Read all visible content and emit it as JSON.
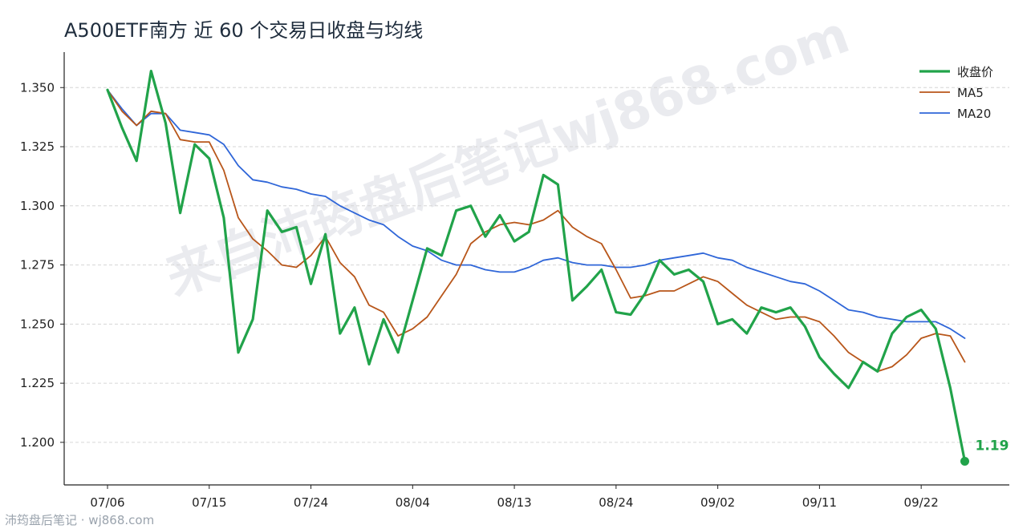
{
  "title": "A500ETF南方 近 60 个交易日收盘与均线",
  "watermark": "来自沛筠盘后笔记wj868.com",
  "footer": "沛筠盘后笔记 · wj868.com",
  "colors": {
    "close": "#21a34a",
    "ma5": "#b8561a",
    "ma20": "#2f66d8",
    "axis": "#222222",
    "grid": "#d6d6d6"
  },
  "chart_data": {
    "type": "line",
    "title": "A500ETF南方 近 60 个交易日收盘与均线",
    "ylim": [
      1.182,
      1.365
    ],
    "yticks": [
      1.2,
      1.225,
      1.25,
      1.275,
      1.3,
      1.325,
      1.35
    ],
    "ytick_labels": [
      "1.200",
      "1.225",
      "1.250",
      "1.275",
      "1.300",
      "1.325",
      "1.350"
    ],
    "xtick_labels": [
      {
        "index": 0,
        "label": "07/06"
      },
      {
        "index": 7,
        "label": "07/15"
      },
      {
        "index": 14,
        "label": "07/24"
      },
      {
        "index": 21,
        "label": "08/04"
      },
      {
        "index": 28,
        "label": "08/13"
      },
      {
        "index": 35,
        "label": "08/24"
      },
      {
        "index": 42,
        "label": "09/02"
      },
      {
        "index": 49,
        "label": "09/11"
      },
      {
        "index": 56,
        "label": "09/22"
      }
    ],
    "grid": "horizontal",
    "legend_position": "top-right",
    "series": [
      {
        "name": "收盘价",
        "values": [
          1.349,
          1.333,
          1.319,
          1.357,
          1.335,
          1.297,
          1.326,
          1.32,
          1.295,
          1.238,
          1.252,
          1.298,
          1.289,
          1.291,
          1.267,
          1.288,
          1.246,
          1.257,
          1.233,
          1.252,
          1.238,
          1.26,
          1.282,
          1.279,
          1.298,
          1.3,
          1.287,
          1.296,
          1.285,
          1.289,
          1.313,
          1.309,
          1.26,
          1.266,
          1.273,
          1.255,
          1.254,
          1.263,
          1.277,
          1.271,
          1.273,
          1.268,
          1.25,
          1.252,
          1.246,
          1.257,
          1.255,
          1.257,
          1.249,
          1.236,
          1.229,
          1.223,
          1.234,
          1.23,
          1.246,
          1.253,
          1.256,
          1.248,
          1.223,
          1.192
        ]
      },
      {
        "name": "MA5",
        "values": [
          1.349,
          1.34,
          1.334,
          1.34,
          1.339,
          1.328,
          1.327,
          1.327,
          1.315,
          1.295,
          1.286,
          1.281,
          1.275,
          1.274,
          1.279,
          1.287,
          1.276,
          1.27,
          1.258,
          1.255,
          1.245,
          1.248,
          1.253,
          1.262,
          1.271,
          1.284,
          1.289,
          1.292,
          1.293,
          1.292,
          1.294,
          1.298,
          1.291,
          1.287,
          1.284,
          1.273,
          1.261,
          1.262,
          1.264,
          1.264,
          1.267,
          1.27,
          1.268,
          1.263,
          1.258,
          1.255,
          1.252,
          1.253,
          1.253,
          1.251,
          1.245,
          1.238,
          1.234,
          1.23,
          1.232,
          1.237,
          1.244,
          1.246,
          1.245,
          1.234
        ]
      },
      {
        "name": "MA20",
        "values": [
          1.349,
          1.341,
          1.334,
          1.339,
          1.339,
          1.332,
          1.331,
          1.33,
          1.326,
          1.317,
          1.311,
          1.31,
          1.308,
          1.307,
          1.305,
          1.304,
          1.3,
          1.297,
          1.294,
          1.292,
          1.287,
          1.283,
          1.281,
          1.277,
          1.275,
          1.275,
          1.273,
          1.272,
          1.272,
          1.274,
          1.277,
          1.278,
          1.276,
          1.275,
          1.275,
          1.274,
          1.274,
          1.275,
          1.277,
          1.278,
          1.279,
          1.28,
          1.278,
          1.277,
          1.274,
          1.272,
          1.27,
          1.268,
          1.267,
          1.264,
          1.26,
          1.256,
          1.255,
          1.253,
          1.252,
          1.251,
          1.251,
          1.251,
          1.248,
          1.244
        ]
      }
    ],
    "last_value_label": "1.19"
  }
}
